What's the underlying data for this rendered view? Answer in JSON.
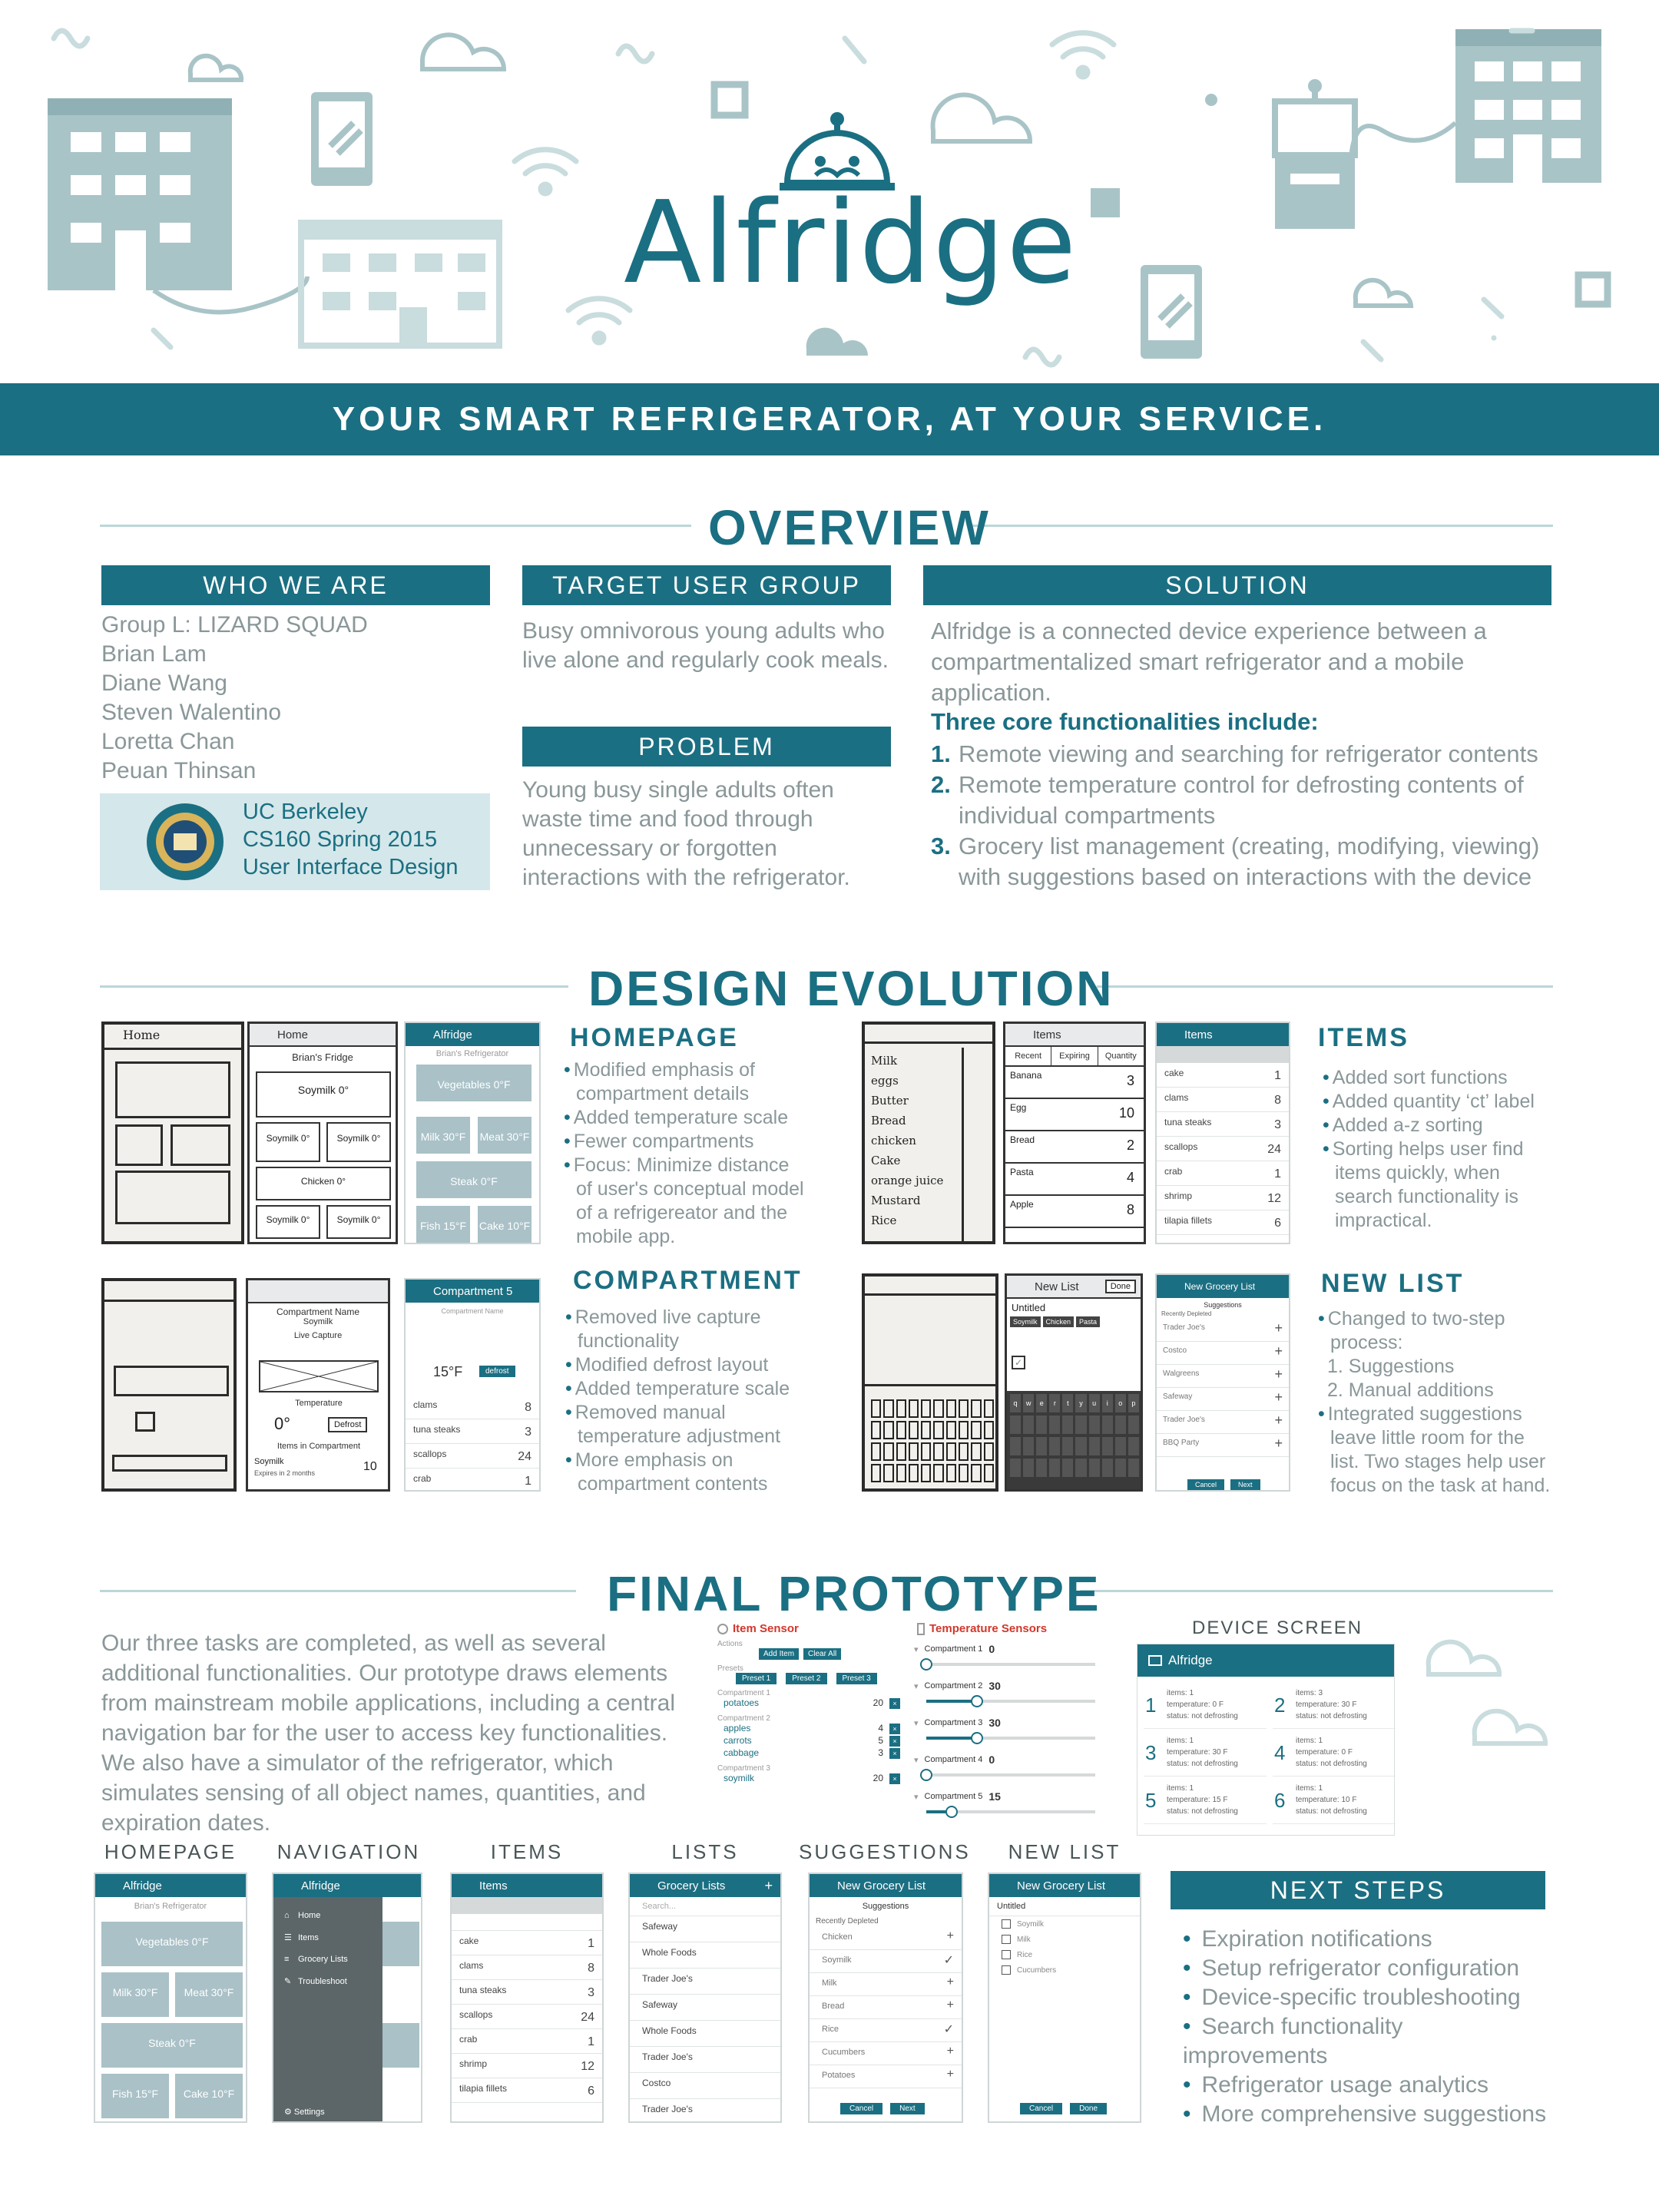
{
  "brand": "Alfridge",
  "tagline": "YOUR SMART REFRIGERATOR, AT YOUR SERVICE.",
  "overview": {
    "title": "OVERVIEW",
    "who": {
      "header": "WHO WE ARE",
      "lines": [
        "Group L: LIZARD SQUAD",
        "Brian Lam",
        "Diane Wang",
        "Steven Walentino",
        "Loretta Chan",
        "Peuan Thinsan"
      ],
      "school": [
        "UC Berkeley",
        "CS160 Spring 2015",
        "User Interface Design"
      ]
    },
    "target": {
      "header": "TARGET USER GROUP",
      "text": "Busy omnivorous young adults who live alone and regularly cook meals."
    },
    "problem": {
      "header": "PROBLEM",
      "text": "Young busy single adults often waste time and food through unnecessary or forgotten interactions with the refrigerator."
    },
    "solution": {
      "header": "SOLUTION",
      "intro": "Alfridge is a connected device experience between a compartmentalized smart refrigerator and a mobile application.",
      "subhead": "Three core functionalities include:",
      "items": [
        {
          "num": "1.",
          "text": "Remote viewing and searching for refrigerator contents"
        },
        {
          "num": "2.",
          "text": "Remote temperature control for defrosting contents of individual compartments"
        },
        {
          "num": "3.",
          "text": "Grocery list management (creating, modifying, viewing) with suggestions based on interactions with the device"
        }
      ]
    }
  },
  "design": {
    "title": "DESIGN EVOLUTION",
    "homepage": {
      "title": "HOMEPAGE",
      "bullets": [
        "Modified emphasis of compartment details",
        "Added temperature scale",
        "Fewer compartments",
        "Focus: Minimize distance of user's conceptual model of a refrigereator and the mobile app."
      ]
    },
    "items": {
      "title": "ITEMS",
      "bullets": [
        "Added sort functions",
        "Added quantity ‘ct’ label",
        "Added a-z sorting",
        "Sorting helps user find items quickly, when search functionality is impractical."
      ]
    },
    "compartment": {
      "title": "COMPARTMENT",
      "bullets": [
        "Removed live capture functionality",
        "Modified defrost layout",
        "Added temperature scale",
        "Removed manual temperature adjustment",
        "More emphasis on compartment contents"
      ]
    },
    "newlist": {
      "title": "NEW LIST",
      "bullets": [
        "Changed to two-step process:"
      ],
      "steps": [
        "1. Suggestions",
        "2. Manual additions"
      ],
      "bullets2": [
        "Integrated suggestions leave little room for the list. Two stages help user focus on the task at hand."
      ]
    }
  },
  "mock_home": {
    "bar1": "Home",
    "bar2": "Alfridge",
    "fridge": "Brian's Fridge",
    "fridge2": "Brian's Refrigerator",
    "tiles": [
      "Vegetables 0°F",
      "Milk 30°F",
      "Meat 30°F",
      "Steak 0°F",
      "Fish 15°F",
      "Cake 10°F"
    ],
    "wire": [
      "Soymilk 0°",
      "Soymilk 0°",
      "Soymilk 0°",
      "Chicken 0°",
      "Soymilk 0°",
      "Soymilk 0°"
    ]
  },
  "mock_items": {
    "bar1": "Items",
    "bar2": "Items",
    "tabs": [
      "Recent",
      "Expiring",
      "Quantity"
    ],
    "wire": [
      [
        "Banana",
        "3"
      ],
      [
        "Egg",
        "10"
      ],
      [
        "Bread",
        "2"
      ],
      [
        "Pasta",
        "4"
      ],
      [
        "Apple",
        "8"
      ]
    ],
    "rows": [
      [
        "cake",
        "1"
      ],
      [
        "clams",
        "8"
      ],
      [
        "tuna steaks",
        "3"
      ],
      [
        "scallops",
        "24"
      ],
      [
        "crab",
        "1"
      ],
      [
        "shrimp",
        "12"
      ],
      [
        "tilapia fillets",
        "6"
      ]
    ],
    "sketch": [
      "Milk",
      "eggs",
      "Butter",
      "Bread",
      "chicken",
      "Cake",
      "orange juice",
      "Mustard",
      "Rice"
    ]
  },
  "mock_compartment": {
    "bar": "Compartment 5",
    "name_label": "Compartment Name",
    "name": "Soymilk",
    "live": "Live Capture",
    "temp_label": "Temperature",
    "temp": "0°",
    "defrost": "Defrost",
    "items_label": "Items in Compartment",
    "item": "Soymilk",
    "item_exp": "Expires in 2 months",
    "item_qty": "10",
    "final_temp": "15°F",
    "final_defrost": "defrost",
    "rows": [
      [
        "clams",
        "8"
      ],
      [
        "tuna steaks",
        "3"
      ],
      [
        "scallops",
        "24"
      ],
      [
        "crab",
        "1"
      ]
    ]
  },
  "mock_newlist": {
    "bar1": "New List",
    "done": "Done",
    "untitled": "Untitled",
    "chips": [
      "Soymilk",
      "Chicken",
      "Pasta"
    ],
    "bar2": "New Grocery List",
    "suggestions": "Suggestions",
    "recent": "Recently Depleted",
    "stores": [
      "Trader Joe's",
      "Costco",
      "Walgreens",
      "Safeway",
      "Trader Joe's",
      "BBQ Party"
    ],
    "cancel": "Cancel",
    "next": "Next",
    "keys": [
      "q",
      "w",
      "e",
      "r",
      "t",
      "y",
      "u",
      "i",
      "o",
      "p"
    ]
  },
  "final": {
    "title": "FINAL PROTOTYPE",
    "text": "Our three tasks are completed, as well as several additional functionalities. Our prototype draws elements from mainstream mobile applications, including a central navigation bar for the user to access key functionalities. We also have a simulator of the refrigerator, which simulates sensing of all object names, quantities, and expiration dates.",
    "item_sensor": {
      "title": "Item Sensor",
      "actions": "Actions",
      "add": "Add Item",
      "clear": "Clear All",
      "presets": "Presets",
      "preset_btns": [
        "Preset 1",
        "Preset 2",
        "Preset 3"
      ],
      "groups": [
        {
          "label": "Compartment 1",
          "items": [
            [
              "potatoes",
              "20"
            ]
          ]
        },
        {
          "label": "Compartment 2",
          "items": [
            [
              "apples",
              "4"
            ],
            [
              "carrots",
              "5"
            ],
            [
              "cabbage",
              "3"
            ]
          ]
        },
        {
          "label": "Compartment 3",
          "items": [
            [
              "soymilk",
              "20"
            ]
          ]
        }
      ]
    },
    "temp_sensors": {
      "title": "Temperature Sensors",
      "rows": [
        [
          "Compartment 1",
          "0"
        ],
        [
          "Compartment 2",
          "30"
        ],
        [
          "Compartment 3",
          "30"
        ],
        [
          "Compartment 4",
          "0"
        ],
        [
          "Compartment 5",
          "15"
        ]
      ]
    },
    "device": {
      "title": "DEVICE SCREEN",
      "bar": "Alfridge",
      "cells": [
        {
          "n": "1",
          "l1": "items: 1",
          "l2": "temperature: 0 F",
          "l3": "status: not defrosting"
        },
        {
          "n": "2",
          "l1": "items: 3",
          "l2": "temperature: 30 F",
          "l3": "status: not defrosting"
        },
        {
          "n": "3",
          "l1": "items: 1",
          "l2": "temperature: 30 F",
          "l3": "status: not defrosting"
        },
        {
          "n": "4",
          "l1": "items: 1",
          "l2": "temperature: 0 F",
          "l3": "status: not defrosting"
        },
        {
          "n": "5",
          "l1": "items: 1",
          "l2": "temperature: 15 F",
          "l3": "status: not defrosting"
        },
        {
          "n": "6",
          "l1": "items: 1",
          "l2": "temperature: 10 F",
          "l3": "status: not defrosting"
        }
      ]
    },
    "captions": [
      "HOMEPAGE",
      "NAVIGATION",
      "ITEMS",
      "LISTS",
      "SUGGESTIONS",
      "NEW LIST"
    ],
    "nav": {
      "items": [
        "Home",
        "Items",
        "Grocery Lists",
        "Troubleshoot"
      ],
      "settings": "Settings"
    },
    "lists": {
      "bar": "Grocery Lists",
      "search": "Search...",
      "stores": [
        "Safeway",
        "Whole Foods",
        "Trader Joe's",
        "Safeway",
        "Whole Foods",
        "Trader Joe's",
        "Costco",
        "Trader Joe's"
      ]
    },
    "sugg": {
      "bar": "New Grocery List",
      "head": "Suggestions",
      "recent": "Recently Depleted",
      "items": [
        "Chicken",
        "Soymilk",
        "Milk",
        "Bread",
        "Rice",
        "Cucumbers",
        "Potatoes"
      ],
      "cancel": "Cancel",
      "next": "Next"
    },
    "newlist": {
      "bar": "New Grocery List",
      "untitled": "Untitled",
      "items": [
        "Soymilk",
        "Milk",
        "Rice",
        "Cucumbers"
      ],
      "cancel": "Cancel",
      "done": "Done"
    }
  },
  "next_steps": {
    "header": "NEXT STEPS",
    "items": [
      "Expiration notifications",
      "Setup refrigerator configuration",
      "Device-specific troubleshooting",
      "Search functionality improvements",
      "Refrigerator usage analytics",
      "More comprehensive suggestions"
    ]
  },
  "colors": {
    "accent": "#1b6f82",
    "icon": "#a9c4c7"
  }
}
